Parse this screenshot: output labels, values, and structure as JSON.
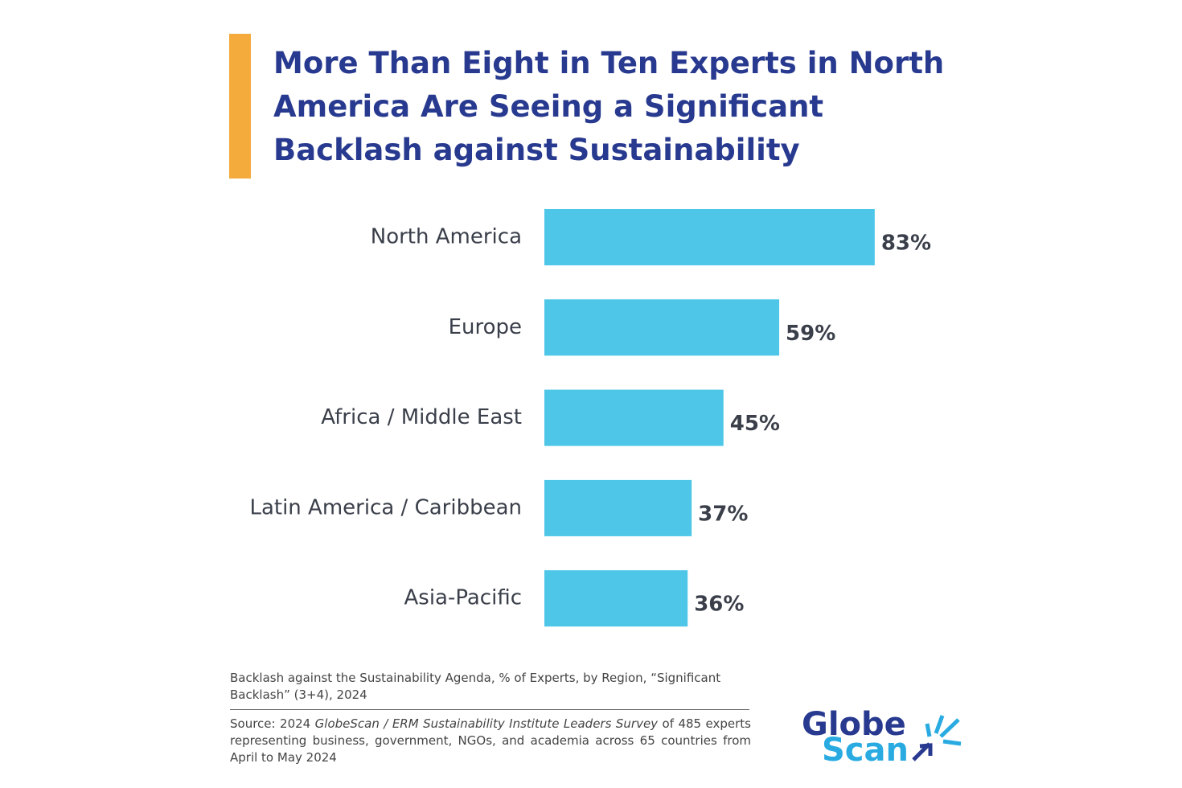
{
  "chart_data": {
    "type": "bar",
    "orientation": "horizontal",
    "title": "More Than Eight in Ten Experts in North America Are Seeing a Significant Backlash against Sustainability",
    "categories": [
      "North America",
      "Europe",
      "Africa / Middle East",
      "Latin America / Caribbean",
      "Asia-Pacific"
    ],
    "values": [
      83,
      59,
      45,
      37,
      36
    ],
    "value_labels": [
      "83%",
      "59%",
      "45%",
      "37%",
      "36%"
    ],
    "color": "#4dc6e7",
    "note": "Backlash against the Sustainability Agenda, % of Experts, by Region, “Significant Backlash” (3+4), 2024",
    "source": [
      "Source: 2024 ",
      "GlobeScan / ERM Sustainability Institute Leaders Survey",
      " of 485 experts representing business, government, NGOs, and academia across 65 countries from April to May 2024"
    ]
  },
  "logo": {
    "line1": "Globe",
    "line2": "Scan"
  }
}
